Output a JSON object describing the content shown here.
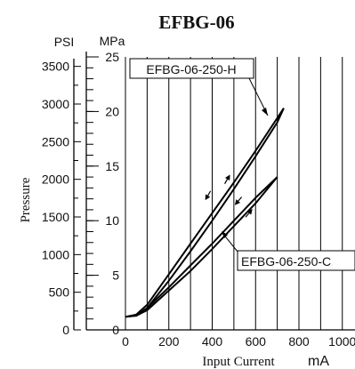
{
  "chart_data": {
    "type": "line",
    "title": "EFBG-06",
    "xlabel": "Input Current",
    "xunit": "mA",
    "ylabel": "Pressure",
    "y_primary_unit": "MPa",
    "y_secondary_unit": "PSI",
    "xlim": [
      -100,
      1000
    ],
    "ylim": [
      0,
      25
    ],
    "x_ticks": [
      0,
      200,
      400,
      600,
      800,
      1000
    ],
    "x_tick_labels": [
      "0",
      "200",
      "400",
      "600",
      "800",
      "1000"
    ],
    "y_ticks": [
      0,
      5,
      10,
      15,
      20,
      25
    ],
    "y_tick_labels": [
      "0",
      "5",
      "10",
      "15",
      "20",
      "25"
    ],
    "psi_ticks": [
      0,
      500,
      1000,
      1500,
      2000,
      2500,
      3000,
      3500
    ],
    "psi_tick_labels": [
      "0",
      "500",
      "1000",
      "1500",
      "2000",
      "2500",
      "3000",
      "3500"
    ],
    "grid": true,
    "series": [
      {
        "name": "EFBG-06-250-H",
        "up": {
          "x": [
            0,
            50,
            100,
            200,
            300,
            400,
            500,
            600,
            700,
            730
          ],
          "y": [
            1.2,
            1.3,
            2.0,
            4.5,
            7.2,
            10.0,
            12.9,
            15.9,
            19.0,
            20.3
          ]
        },
        "down": {
          "x": [
            730,
            700,
            600,
            500,
            400,
            300,
            200,
            100,
            50,
            0
          ],
          "y": [
            20.3,
            19.4,
            16.4,
            13.5,
            10.7,
            7.9,
            5.1,
            2.3,
            1.4,
            1.2
          ]
        }
      },
      {
        "name": "EFBG-06-250-C",
        "up": {
          "x": [
            50,
            100,
            200,
            300,
            400,
            500,
            600,
            700
          ],
          "y": [
            1.3,
            1.8,
            3.6,
            5.4,
            7.4,
            9.5,
            11.6,
            14.0
          ]
        },
        "down": {
          "x": [
            700,
            600,
            500,
            400,
            300,
            200,
            100,
            50
          ],
          "y": [
            14.0,
            12.1,
            10.0,
            7.9,
            5.9,
            3.9,
            2.0,
            1.3
          ]
        }
      }
    ]
  }
}
